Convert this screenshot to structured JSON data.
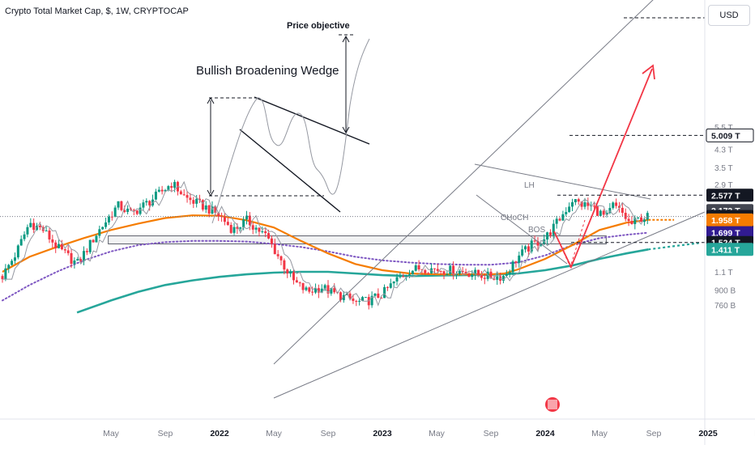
{
  "chart_data": {
    "type": "candlestick",
    "title": "Crypto Total Market Cap, $, 1W, CRYPTOCAP",
    "currency": "USD",
    "y_scale": "log",
    "y_range": [
      0.69,
      6.3
    ],
    "y_ticks": [
      {
        "v": 5.5,
        "label": "5.5 T"
      },
      {
        "v": 4.3,
        "label": "4.3 T"
      },
      {
        "v": 3.5,
        "label": "3.5 T"
      },
      {
        "v": 2.9,
        "label": "2.9 T"
      },
      {
        "v": 1.1,
        "label": "1.1 T"
      },
      {
        "v": 0.9,
        "label": "900 B"
      },
      {
        "v": 0.76,
        "label": "760 B"
      }
    ],
    "x_ticks": [
      {
        "m": 8.0,
        "label": "May"
      },
      {
        "m": 12.0,
        "label": "Sep"
      },
      {
        "m": 16.0,
        "label": "2022"
      },
      {
        "m": 20.0,
        "label": "May"
      },
      {
        "m": 24.0,
        "label": "Sep"
      },
      {
        "m": 28.0,
        "label": "2023"
      },
      {
        "m": 32.0,
        "label": "May"
      },
      {
        "m": 36.0,
        "label": "Sep"
      },
      {
        "m": 40.0,
        "label": "2024"
      },
      {
        "m": 44.0,
        "label": "May"
      },
      {
        "m": 48.0,
        "label": "Sep"
      },
      {
        "m": 52.0,
        "label": "2025"
      },
      {
        "m": 56.0,
        "label": "May"
      }
    ],
    "price_badges": [
      {
        "v": 5.009,
        "label": "5.009 T",
        "bg": "#ffffff",
        "fg": "#131722",
        "border": "#131722"
      },
      {
        "v": 2.577,
        "label": "2.577 T",
        "bg": "#131722",
        "fg": "#ffffff"
      },
      {
        "v": 2.173,
        "label": "2.173 T",
        "bg": "#434651",
        "fg": "#ffffff"
      },
      {
        "v": 2.034,
        "label": "2.034 T",
        "bg": "#131722",
        "fg": "#ffffff",
        "sub": "5d 0h"
      },
      {
        "v": 1.958,
        "label": "1.958 T",
        "bg": "#f57c00",
        "fg": "#ffffff"
      },
      {
        "v": 1.699,
        "label": "1.699 T",
        "bg": "#311b92",
        "fg": "#ffffff"
      },
      {
        "v": 1.524,
        "label": "1.524 T",
        "bg": "#131722",
        "fg": "#ffffff"
      },
      {
        "v": 1.411,
        "label": "1.411 T",
        "bg": "#26a69a",
        "fg": "#ffffff"
      }
    ],
    "colors": {
      "up": "#089981",
      "down": "#f23645",
      "ema": "#f57c00",
      "sma200": "#26a69a",
      "sma_dotted": "#7e57c2",
      "trend": "#787b86",
      "projection": "#f23645",
      "zone": "#b2b5be"
    },
    "annotations": {
      "bullish_wedge": "Bullish Broadening Wedge",
      "price_objective": "Price objective",
      "lh": "LH",
      "choch": "CHoCH",
      "bos": "BOS"
    },
    "ohlc_anchors": [
      [
        0.0,
        1.05
      ],
      [
        1.0,
        1.35
      ],
      [
        2.0,
        1.9
      ],
      [
        3.0,
        1.75
      ],
      [
        4.0,
        1.45
      ],
      [
        5.5,
        1.2
      ],
      [
        7.0,
        1.7
      ],
      [
        8.5,
        2.3
      ],
      [
        9.5,
        2.1
      ],
      [
        11.0,
        2.45
      ],
      [
        12.5,
        2.95
      ],
      [
        13.5,
        2.5
      ],
      [
        15.0,
        2.25
      ],
      [
        16.0,
        2.05
      ],
      [
        17.0,
        1.75
      ],
      [
        18.0,
        1.95
      ],
      [
        19.5,
        1.62
      ],
      [
        20.5,
        1.25
      ],
      [
        21.5,
        0.98
      ],
      [
        22.5,
        0.88
      ],
      [
        23.5,
        0.93
      ],
      [
        24.5,
        0.86
      ],
      [
        25.5,
        0.82
      ],
      [
        26.0,
        0.78
      ],
      [
        27.0,
        0.8
      ],
      [
        28.0,
        0.86
      ],
      [
        29.0,
        1.0
      ],
      [
        30.0,
        1.12
      ],
      [
        31.0,
        1.15
      ],
      [
        32.0,
        1.13
      ],
      [
        33.0,
        1.12
      ],
      [
        34.0,
        1.1
      ],
      [
        35.0,
        1.07
      ],
      [
        36.0,
        1.04
      ],
      [
        37.0,
        1.05
      ],
      [
        38.0,
        1.3
      ],
      [
        39.0,
        1.48
      ],
      [
        40.0,
        1.6
      ],
      [
        41.0,
        1.95
      ],
      [
        42.0,
        2.45
      ],
      [
        42.5,
        2.35
      ],
      [
        43.5,
        2.25
      ],
      [
        44.5,
        2.0
      ],
      [
        45.0,
        2.3
      ],
      [
        45.7,
        2.1
      ],
      [
        46.3,
        1.85
      ],
      [
        47.0,
        2.0
      ],
      [
        47.6,
        2.03
      ]
    ],
    "ema_points": [
      [
        0,
        1.1
      ],
      [
        2,
        1.3
      ],
      [
        4,
        1.45
      ],
      [
        6,
        1.6
      ],
      [
        8,
        1.75
      ],
      [
        10,
        1.88
      ],
      [
        12,
        2.0
      ],
      [
        14,
        2.06
      ],
      [
        16,
        2.05
      ],
      [
        18,
        1.95
      ],
      [
        20,
        1.8
      ],
      [
        22,
        1.55
      ],
      [
        24,
        1.35
      ],
      [
        26,
        1.2
      ],
      [
        28,
        1.12
      ],
      [
        30,
        1.08
      ],
      [
        32,
        1.07
      ],
      [
        34,
        1.07
      ],
      [
        36,
        1.07
      ],
      [
        37,
        1.08
      ],
      [
        38,
        1.13
      ],
      [
        40,
        1.27
      ],
      [
        42,
        1.48
      ],
      [
        44,
        1.75
      ],
      [
        46,
        1.9
      ],
      [
        47.6,
        1.958
      ]
    ],
    "ema_projection": [
      [
        47.6,
        1.958
      ],
      [
        49.5,
        1.958
      ]
    ],
    "sma200_points": [
      [
        5.5,
        0.7
      ],
      [
        8,
        0.8
      ],
      [
        10,
        0.88
      ],
      [
        12,
        0.95
      ],
      [
        14,
        1.0
      ],
      [
        16,
        1.04
      ],
      [
        18,
        1.07
      ],
      [
        20,
        1.09
      ],
      [
        22,
        1.1
      ],
      [
        24,
        1.1
      ],
      [
        26,
        1.08
      ],
      [
        28,
        1.06
      ],
      [
        30,
        1.05
      ],
      [
        32,
        1.055
      ],
      [
        34,
        1.06
      ],
      [
        36,
        1.065
      ],
      [
        38,
        1.08
      ],
      [
        40,
        1.12
      ],
      [
        42,
        1.18
      ],
      [
        44,
        1.27
      ],
      [
        46,
        1.35
      ],
      [
        47.6,
        1.411
      ]
    ],
    "sma200_projection": [
      [
        47.6,
        1.411
      ],
      [
        51.5,
        1.52
      ]
    ],
    "sma_dotted_points": [
      [
        0,
        0.8
      ],
      [
        2,
        0.95
      ],
      [
        4,
        1.1
      ],
      [
        6,
        1.25
      ],
      [
        8,
        1.38
      ],
      [
        10,
        1.48
      ],
      [
        12,
        1.53
      ],
      [
        14,
        1.55
      ],
      [
        16,
        1.55
      ],
      [
        18,
        1.54
      ],
      [
        20,
        1.5
      ],
      [
        22,
        1.45
      ],
      [
        24,
        1.38
      ],
      [
        26,
        1.3
      ],
      [
        28,
        1.25
      ],
      [
        30,
        1.22
      ],
      [
        32,
        1.2
      ],
      [
        34,
        1.19
      ],
      [
        36,
        1.19
      ],
      [
        38,
        1.22
      ],
      [
        40,
        1.32
      ],
      [
        42,
        1.48
      ],
      [
        44,
        1.6
      ],
      [
        46,
        1.66
      ],
      [
        47.6,
        1.699
      ]
    ]
  }
}
